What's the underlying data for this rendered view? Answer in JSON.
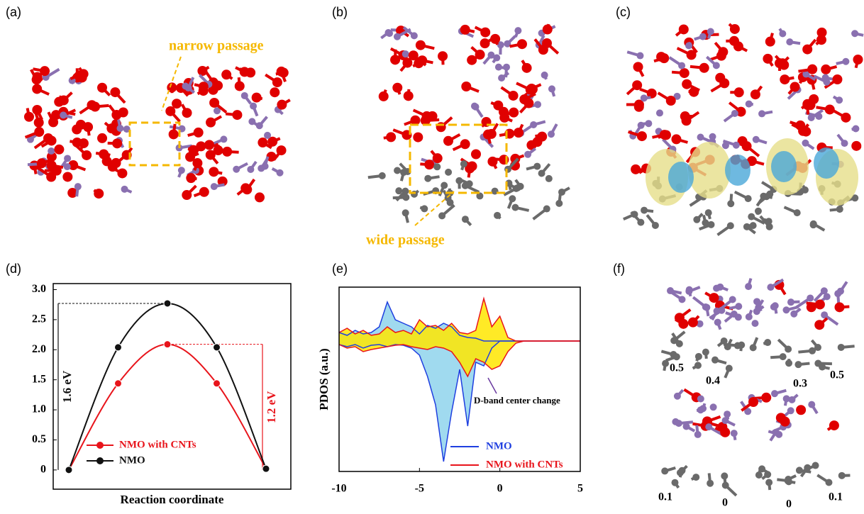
{
  "panels": {
    "a": {
      "label": "(a)",
      "annotation": "narrow passage"
    },
    "b": {
      "label": "(b)",
      "annotation": "wide passage"
    },
    "c": {
      "label": "(c)"
    },
    "d": {
      "label": "(d)"
    },
    "e": {
      "label": "(e)"
    },
    "f": {
      "label": "(f)",
      "top_values": [
        "0.5",
        "0.4",
        "0.3",
        "0.5"
      ],
      "bottom_values": [
        "0.1",
        "0",
        "0",
        "0.1"
      ]
    }
  },
  "chart_data": [
    {
      "type": "line",
      "xlabel": "Reaction coordinate",
      "categories": [
        null,
        null,
        null,
        null,
        null
      ],
      "series": [
        {
          "name": "NMO with CNTs",
          "color": "#e8141b",
          "values": [
            0,
            1.44,
            2.09,
            1.44,
            0.02
          ]
        },
        {
          "name": "NMO",
          "color": "#111111",
          "values": [
            0,
            2.04,
            2.77,
            2.04,
            0.02
          ]
        }
      ],
      "ylim": [
        -0.32,
        3.1
      ],
      "yticks": [
        0,
        0.5,
        {
          "value": 1,
          "label": "1.0"
        },
        1.5,
        {
          "value": 2,
          "label": "2.0"
        },
        2.5,
        {
          "value": 3,
          "label": "3.0"
        }
      ],
      "annotations": [
        "1.6 eV",
        "1.2 eV"
      ],
      "legend": "lower-left"
    },
    {
      "type": "pdos",
      "ylabel": "PDOS (a.u.)",
      "annotation": "D-band center change",
      "x": [
        -10,
        -9.5,
        -9,
        -8.5,
        -8,
        -7.5,
        -7,
        -6.5,
        -6,
        -5.5,
        -5,
        -4.5,
        -4,
        -3.5,
        -3,
        -2.5,
        -2,
        -1.5,
        -1,
        -0.5,
        0,
        0.5,
        1,
        1.5,
        2,
        2.5,
        3,
        3.5,
        4,
        4.5,
        5
      ],
      "series": [
        {
          "name": "NMO",
          "color": "#1f3fe0",
          "fill": "#8fd3ec",
          "values": [
            0.12,
            0.08,
            0.15,
            0.1,
            0.12,
            0.2,
            0.55,
            0.3,
            0.25,
            0.2,
            0.1,
            0.22,
            0.18,
            0.25,
            0.2,
            0.08,
            0.05,
            0.04,
            0,
            0,
            0,
            0,
            0,
            0,
            0,
            0,
            0,
            0,
            0,
            0,
            0
          ],
          "values_down": [
            -0.05,
            -0.08,
            -0.05,
            -0.1,
            -0.06,
            -0.05,
            -0.08,
            -0.05,
            -0.06,
            -0.1,
            -0.2,
            -0.5,
            -0.9,
            -1.7,
            -1.0,
            -0.4,
            -1.2,
            -0.3,
            -0.35,
            -0.1,
            0,
            0,
            0,
            0,
            0,
            0,
            0,
            0,
            0,
            0,
            0
          ]
        },
        {
          "name": "NMO with CNTs",
          "color": "#e8141b",
          "fill": "#ffe600",
          "values": [
            0.12,
            0.18,
            0.1,
            0.15,
            0.08,
            0.1,
            0.2,
            0.12,
            0.15,
            0.1,
            0.3,
            0.2,
            0.22,
            0.15,
            0.25,
            0.12,
            0.1,
            0.15,
            0.6,
            0.2,
            0.35,
            0.05,
            0,
            0,
            0,
            0,
            0,
            0,
            0,
            0,
            0
          ],
          "values_down": [
            -0.05,
            -0.1,
            -0.08,
            -0.15,
            -0.12,
            -0.1,
            -0.08,
            -0.06,
            -0.05,
            -0.08,
            -0.1,
            -0.12,
            -0.08,
            -0.1,
            -0.15,
            -0.3,
            -0.5,
            -0.25,
            -0.3,
            -0.4,
            -0.35,
            -0.15,
            -0.03,
            0,
            0,
            0,
            0,
            0,
            0,
            0,
            0
          ]
        }
      ],
      "xlim": [
        -10,
        5
      ],
      "xticks": [
        -10,
        -5,
        0,
        5
      ],
      "ylim": [
        -1.84,
        0.76
      ],
      "legend": "lower-right"
    }
  ]
}
